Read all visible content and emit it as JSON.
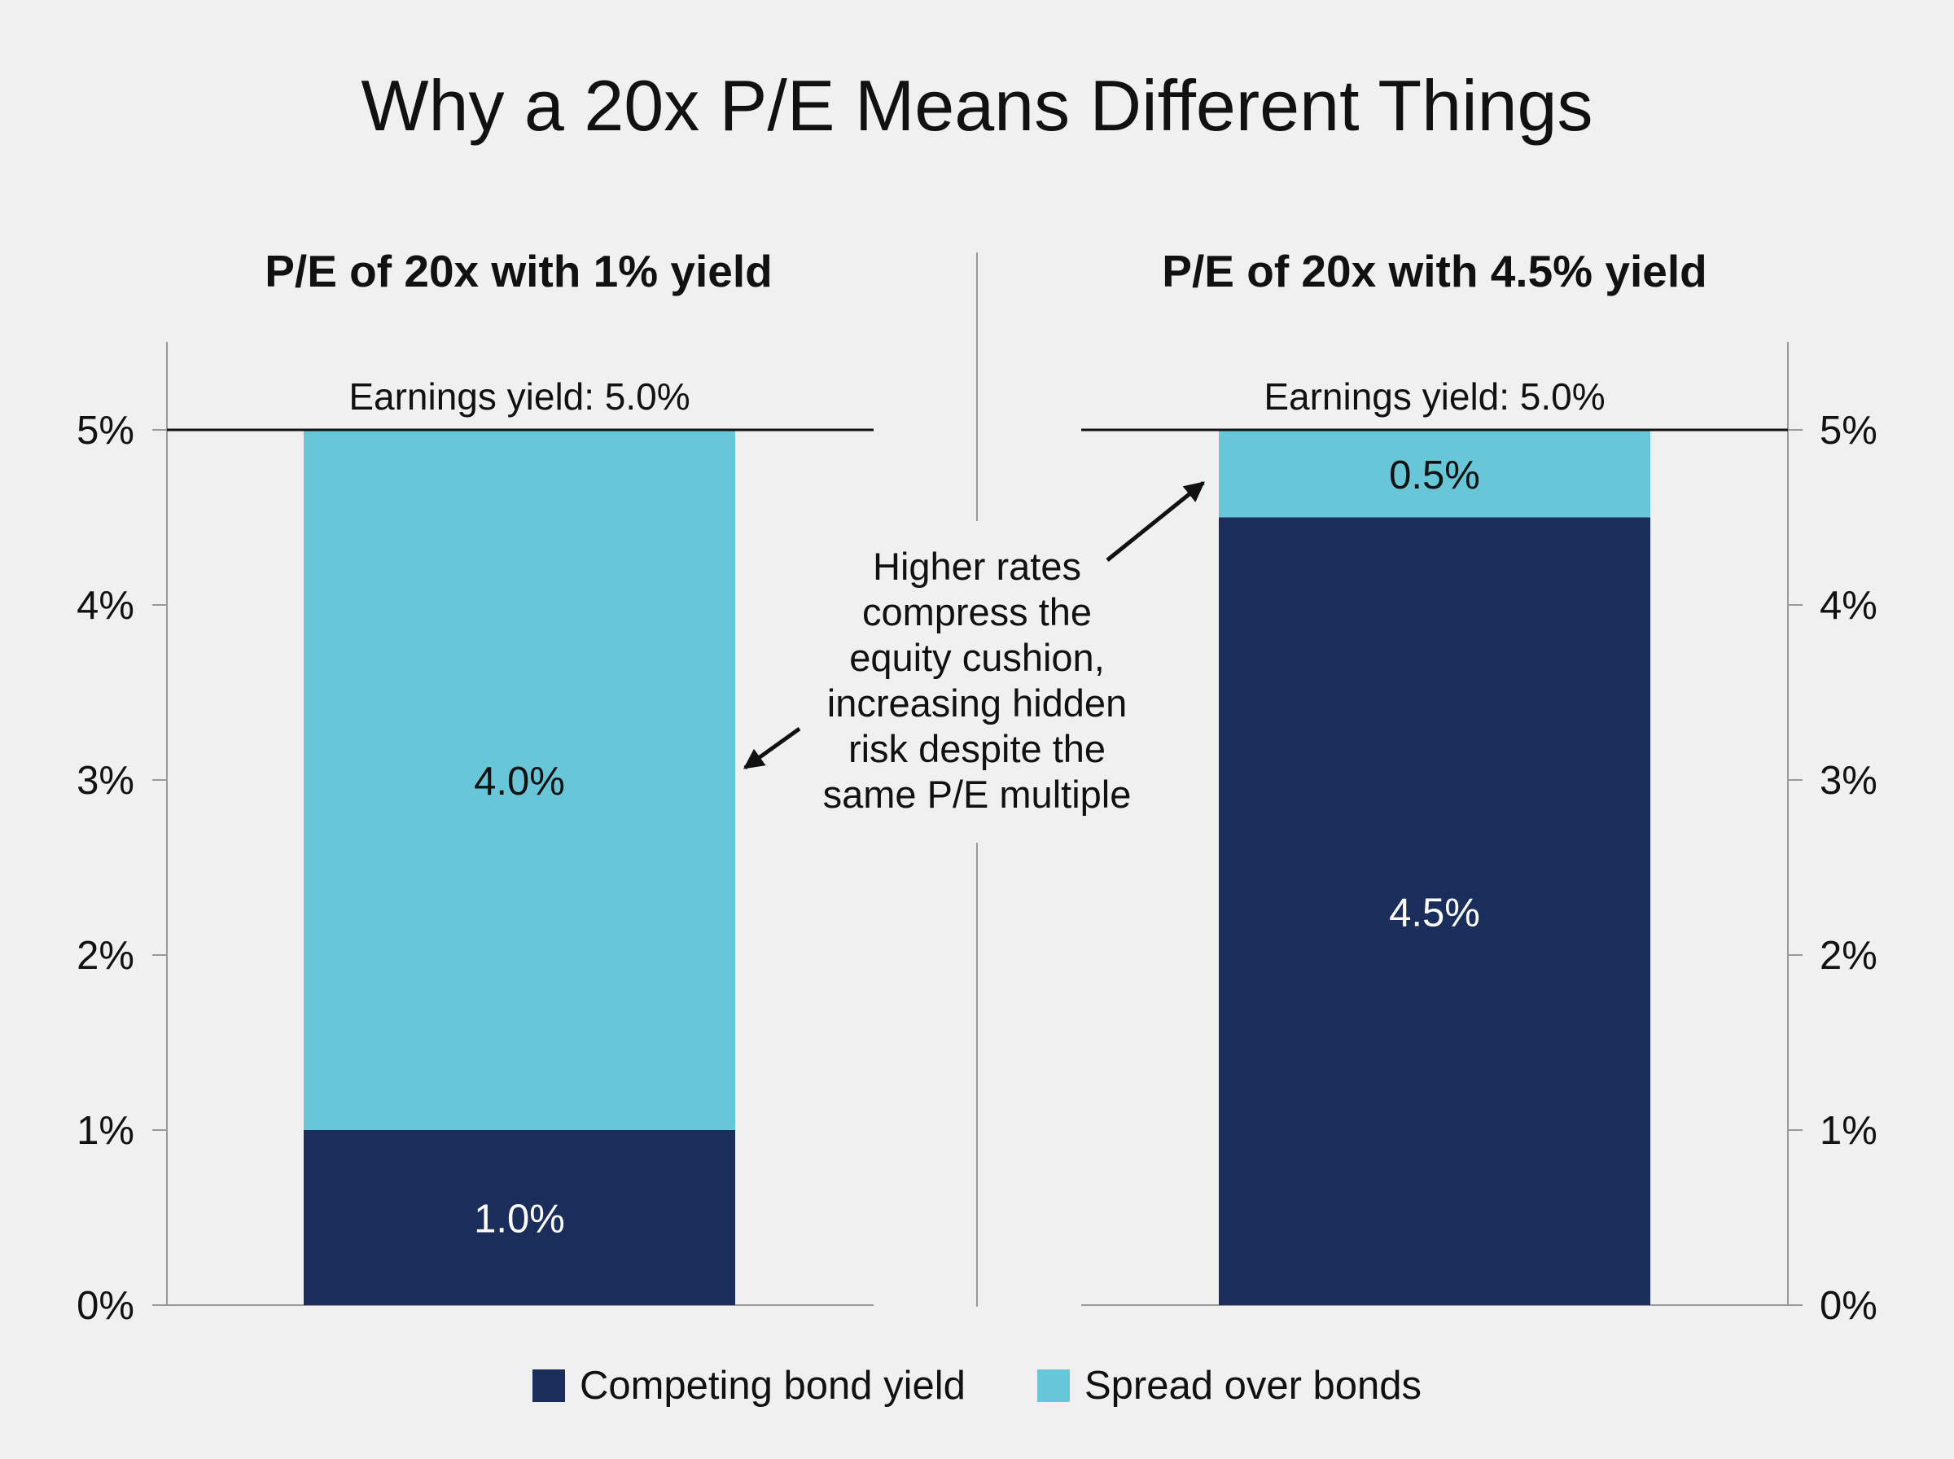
{
  "title": "Why a 20x P/E Means Different Things",
  "colors": {
    "background": "#f0f0f0",
    "bond": "#1b2d5b",
    "spread": "#67c7d9",
    "axis": "#999999",
    "reference_line": "#111111",
    "text": "#111111"
  },
  "legend": [
    {
      "name": "Competing bond yield",
      "color": "#1b2d5b"
    },
    {
      "name": "Spread over bonds",
      "color": "#67c7d9"
    }
  ],
  "annotation": {
    "lines": [
      "Higher rates",
      "compress the",
      "equity cushion,",
      "increasing hidden",
      "risk despite the",
      "same P/E multiple"
    ]
  },
  "chart_data": [
    {
      "type": "bar",
      "stacked": true,
      "title": "P/E of 20x with 1% yield",
      "ylim": [
        0,
        5
      ],
      "yticks": [
        "0%",
        "1%",
        "2%",
        "3%",
        "4%",
        "5%"
      ],
      "y_axis_side": "left",
      "reference": {
        "value": 5.0,
        "label": "Earnings yield: 5.0%"
      },
      "series": [
        {
          "name": "Competing bond yield",
          "values": [
            1.0
          ],
          "labels": [
            "1.0%"
          ]
        },
        {
          "name": "Spread over bonds",
          "values": [
            4.0
          ],
          "labels": [
            "4.0%"
          ]
        }
      ]
    },
    {
      "type": "bar",
      "stacked": true,
      "title": "P/E of 20x with 4.5% yield",
      "ylim": [
        0,
        5
      ],
      "yticks": [
        "0%",
        "1%",
        "2%",
        "3%",
        "4%",
        "5%"
      ],
      "y_axis_side": "right",
      "reference": {
        "value": 5.0,
        "label": "Earnings yield: 5.0%"
      },
      "series": [
        {
          "name": "Competing bond yield",
          "values": [
            4.5
          ],
          "labels": [
            "4.5%"
          ]
        },
        {
          "name": "Spread over bonds",
          "values": [
            0.5
          ],
          "labels": [
            "0.5%"
          ]
        }
      ]
    }
  ]
}
